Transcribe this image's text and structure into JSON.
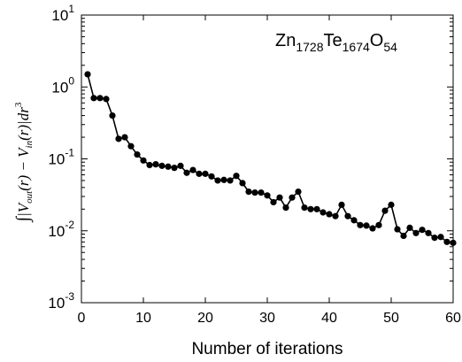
{
  "chart_data": {
    "type": "line",
    "annotation": {
      "base": "Zn",
      "s1": "1728",
      "mid": "Te",
      "s2": "1674",
      "end": "O",
      "s3": "54"
    },
    "xlabel": "Number of iterations",
    "ylabel": {
      "int": "∫",
      "v": "|V",
      "out": "out",
      "r1": "(r) − V",
      "in": "in",
      "r2": "(r)|d",
      "d": "r",
      "exp": "3"
    },
    "xlim": [
      0,
      60
    ],
    "ylim": [
      0.001,
      10
    ],
    "yscale": "log",
    "xticks": [
      0,
      10,
      20,
      30,
      40,
      50,
      60
    ],
    "xtick_labels": [
      "0",
      "10",
      "20",
      "30",
      "40",
      "50",
      "60"
    ],
    "yticks": [
      {
        "value": 0.001,
        "base": "10",
        "exp": "-3"
      },
      {
        "value": 0.01,
        "base": "10",
        "exp": "-2"
      },
      {
        "value": 0.1,
        "base": "10",
        "exp": "-1"
      },
      {
        "value": 1,
        "base": "10",
        "exp": "0"
      },
      {
        "value": 10,
        "base": "10",
        "exp": "1"
      }
    ],
    "grid": false,
    "marker": "filled-circle",
    "color": "#000000",
    "x": [
      1,
      2,
      3,
      4,
      5,
      6,
      7,
      8,
      9,
      10,
      11,
      12,
      13,
      14,
      15,
      16,
      17,
      18,
      19,
      20,
      21,
      22,
      23,
      24,
      25,
      26,
      27,
      28,
      29,
      30,
      31,
      32,
      33,
      34,
      35,
      36,
      37,
      38,
      39,
      40,
      41,
      42,
      43,
      44,
      45,
      46,
      47,
      48,
      49,
      50,
      51,
      52,
      53,
      54,
      55,
      56,
      57,
      58,
      59,
      60
    ],
    "y": [
      1.5,
      0.7,
      0.7,
      0.68,
      0.4,
      0.19,
      0.2,
      0.15,
      0.115,
      0.095,
      0.082,
      0.084,
      0.08,
      0.078,
      0.075,
      0.08,
      0.064,
      0.07,
      0.062,
      0.062,
      0.057,
      0.05,
      0.051,
      0.05,
      0.058,
      0.046,
      0.035,
      0.034,
      0.034,
      0.031,
      0.025,
      0.029,
      0.021,
      0.029,
      0.035,
      0.021,
      0.02,
      0.02,
      0.018,
      0.017,
      0.016,
      0.023,
      0.016,
      0.014,
      0.012,
      0.0118,
      0.0108,
      0.012,
      0.019,
      0.023,
      0.0105,
      0.0085,
      0.011,
      0.0093,
      0.0103,
      0.0093,
      0.008,
      0.0082,
      0.007,
      0.0068
    ]
  }
}
